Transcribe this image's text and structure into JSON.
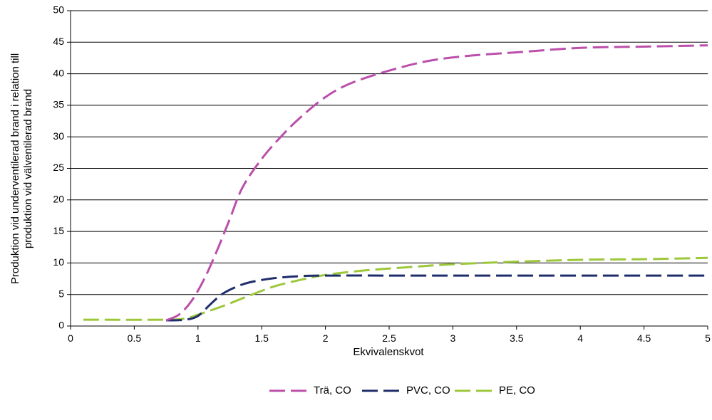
{
  "chart_data": {
    "type": "line",
    "xlabel": "Ekvivalenskvot",
    "ylabel_line1": "Produktion vid underventilerad brand i relation till",
    "ylabel_line2": "produktion vid välventilerad brand",
    "xlim": [
      0,
      5
    ],
    "ylim": [
      0,
      50
    ],
    "xticks": [
      "0",
      "0.5",
      "1",
      "1.5",
      "2",
      "2.5",
      "3",
      "3.5",
      "4",
      "4.5",
      "5"
    ],
    "yticks": [
      "0",
      "5",
      "10",
      "15",
      "20",
      "25",
      "30",
      "35",
      "40",
      "45",
      "50"
    ],
    "grid": "horizontal",
    "legend_position": "bottom",
    "series": [
      {
        "name": "Trä, CO",
        "color": "#bb4fab",
        "points": [
          [
            0.75,
            0.9
          ],
          [
            0.85,
            1.8
          ],
          [
            0.95,
            4.0
          ],
          [
            1.05,
            7.5
          ],
          [
            1.15,
            12.0
          ],
          [
            1.25,
            17.0
          ],
          [
            1.35,
            22.0
          ],
          [
            1.5,
            26.5
          ],
          [
            1.65,
            30.0
          ],
          [
            1.8,
            33.0
          ],
          [
            2.0,
            36.3
          ],
          [
            2.2,
            38.5
          ],
          [
            2.5,
            40.5
          ],
          [
            2.8,
            42.0
          ],
          [
            3.1,
            42.8
          ],
          [
            3.5,
            43.4
          ],
          [
            4.0,
            44.1
          ],
          [
            4.5,
            44.3
          ],
          [
            5.0,
            44.5
          ]
        ]
      },
      {
        "name": "PVC, CO",
        "color": "#1f2d6b",
        "points": [
          [
            0.75,
            0.9
          ],
          [
            0.9,
            1.0
          ],
          [
            1.0,
            1.6
          ],
          [
            1.1,
            3.5
          ],
          [
            1.2,
            5.2
          ],
          [
            1.35,
            6.6
          ],
          [
            1.5,
            7.3
          ],
          [
            1.65,
            7.7
          ],
          [
            1.8,
            7.9
          ],
          [
            2.0,
            8.0
          ],
          [
            3.0,
            8.0
          ],
          [
            4.0,
            8.0
          ],
          [
            5.0,
            8.0
          ]
        ]
      },
      {
        "name": "PE, CO",
        "color": "#9dc73b",
        "points": [
          [
            0.1,
            1.0
          ],
          [
            0.75,
            1.0
          ],
          [
            0.9,
            1.2
          ],
          [
            1.0,
            1.8
          ],
          [
            1.2,
            3.2
          ],
          [
            1.4,
            4.8
          ],
          [
            1.6,
            6.3
          ],
          [
            1.8,
            7.3
          ],
          [
            2.0,
            8.1
          ],
          [
            2.3,
            8.8
          ],
          [
            2.7,
            9.4
          ],
          [
            3.0,
            9.8
          ],
          [
            3.5,
            10.2
          ],
          [
            4.0,
            10.5
          ],
          [
            4.5,
            10.6
          ],
          [
            5.0,
            10.8
          ]
        ]
      }
    ]
  }
}
